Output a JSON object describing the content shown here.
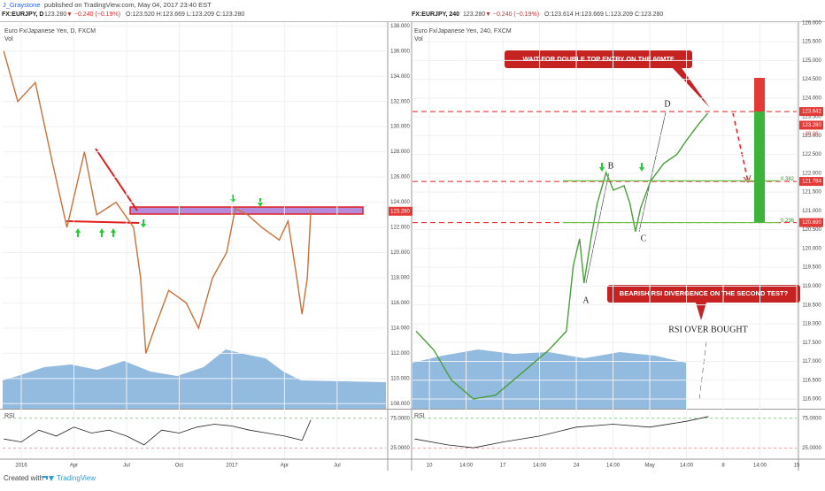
{
  "header": {
    "author": "J_Graystone",
    "published": "published on TradingView.com, May 04, 2017 23:40 EST"
  },
  "footer": {
    "created": "Created with",
    "brand": "TradingView"
  },
  "chart_data": [
    {
      "type": "line",
      "symbol": "FX:EURJPY, D",
      "quote": "123.280",
      "change": "▼ −0.240 (−0.19%)",
      "ohlc": "O:123.520 H:123.669 L:123.209 C:123.280",
      "title": "Euro Fx/Japanese Yen, D, FXCM",
      "volume_label": "Vol",
      "color": "#c8703a",
      "x": [
        -1.0,
        -0.2,
        0.8,
        1.8,
        2.6,
        3.6,
        4.3,
        5.4,
        6.4,
        6.8,
        7.1,
        7.6,
        8.4,
        9.4,
        10.1,
        10.9,
        11.7,
        12.2,
        12.9,
        13.7,
        14.7,
        15.2,
        15.7,
        16.0,
        16.3,
        16.5
      ],
      "values": [
        136,
        132,
        133.5,
        127,
        122,
        128,
        123,
        124,
        122,
        118,
        112,
        114,
        117,
        116,
        114,
        118,
        120,
        123.5,
        123,
        122,
        121,
        122.5,
        118,
        115.1,
        118,
        123.3
      ],
      "xlim": [
        -1.06,
        20.78
      ],
      "ylim": [
        107.6,
        138.3
      ],
      "xticks": [
        {
          "value": 0,
          "label": "2016"
        },
        {
          "value": 3,
          "label": "Apr"
        },
        {
          "value": 6,
          "label": "Jul"
        },
        {
          "value": 9,
          "label": "Oct"
        },
        {
          "value": 12,
          "label": "2017"
        },
        {
          "value": 15,
          "label": "Apr"
        },
        {
          "value": 18,
          "label": "Jul"
        }
      ],
      "yticks": [
        {
          "value": 108,
          "label": "108.000"
        },
        {
          "value": 110,
          "label": "110.000"
        },
        {
          "value": 112,
          "label": "112.000"
        },
        {
          "value": 114,
          "label": "114.000"
        },
        {
          "value": 116,
          "label": "116.000"
        },
        {
          "value": 118,
          "label": "118.000"
        },
        {
          "value": 120,
          "label": "120.000"
        },
        {
          "value": 122,
          "label": "122.000"
        },
        {
          "value": 124,
          "label": "124.000"
        },
        {
          "value": 126,
          "label": "126.000"
        },
        {
          "value": 128,
          "label": "128.000"
        },
        {
          "value": 130,
          "label": "130.000"
        },
        {
          "value": 132,
          "label": "132.000"
        },
        {
          "value": 134,
          "label": "134.000"
        },
        {
          "value": 136,
          "label": "136.000"
        },
        {
          "value": 138,
          "label": "138.000"
        }
      ],
      "last_price": {
        "value": 123.28,
        "label": "123.280"
      }
    },
    {
      "type": "line",
      "title": "RSI",
      "color": "#222222",
      "x": [
        -1,
        0,
        1,
        2,
        3,
        4,
        5,
        6,
        7,
        8,
        9,
        10,
        11,
        12,
        13,
        14,
        15,
        16,
        16.5
      ],
      "values": [
        40,
        35,
        55,
        45,
        60,
        50,
        55,
        45,
        30,
        55,
        50,
        60,
        65,
        62,
        55,
        50,
        45,
        38,
        72
      ],
      "xlim": [
        -1.06,
        20.78
      ],
      "ylim": [
        7.4,
        89.7
      ],
      "yticks": [
        {
          "value": 75,
          "label": "75.0000"
        },
        {
          "value": 25,
          "label": "25.0000"
        }
      ]
    },
    {
      "type": "line",
      "symbol": "FX:EURJPY, 240",
      "quote": "123.280",
      "change": "▼ −0.240 (−0.19%)",
      "ohlc": "O:123.614 H:123.669 L:123.209 C:123.280",
      "title": "Euro Fx/Japanese Yen, 240, FXCM",
      "volume_label": "Vol",
      "color": "#4a9e3c",
      "x": [
        -0.36,
        0.12,
        0.6,
        1.2,
        1.8,
        2.53,
        3.25,
        3.73,
        3.92,
        4.09,
        4.21,
        4.4,
        4.57,
        4.81,
        5.01,
        5.3,
        5.46,
        5.61,
        5.75,
        6.02,
        6.38,
        6.74,
        6.98,
        7.34,
        7.58
      ],
      "values": [
        117.8,
        117.3,
        116.5,
        116.0,
        116.1,
        116.7,
        117.3,
        117.8,
        119.55,
        120.26,
        119.08,
        120.26,
        121.2,
        122.02,
        121.55,
        121.67,
        121.2,
        120.45,
        121.08,
        121.79,
        122.26,
        122.5,
        122.85,
        123.32,
        123.6
      ],
      "xlim": [
        -0.46,
        10
      ],
      "ylim": [
        115.74,
        126.02
      ],
      "xticks": [
        {
          "value": 0,
          "label": "10"
        },
        {
          "value": 1,
          "label": "14:00"
        },
        {
          "value": 2,
          "label": "17"
        },
        {
          "value": 3,
          "label": "14:00"
        },
        {
          "value": 4,
          "label": "24"
        },
        {
          "value": 5,
          "label": "14:00"
        },
        {
          "value": 6,
          "label": "May"
        },
        {
          "value": 7,
          "label": "14:00"
        },
        {
          "value": 8,
          "label": "8"
        },
        {
          "value": 9,
          "label": "14:00"
        },
        {
          "value": 10,
          "label": "15"
        }
      ],
      "yticks": [
        {
          "value": 116,
          "label": "116.000"
        },
        {
          "value": 116.5,
          "label": "116.500"
        },
        {
          "value": 117,
          "label": "117.000"
        },
        {
          "value": 117.5,
          "label": "117.500"
        },
        {
          "value": 118,
          "label": "118.000"
        },
        {
          "value": 118.5,
          "label": "118.500"
        },
        {
          "value": 119,
          "label": "119.000"
        },
        {
          "value": 119.5,
          "label": "119.500"
        },
        {
          "value": 120,
          "label": "120.000"
        },
        {
          "value": 120.5,
          "label": "120.500"
        },
        {
          "value": 121,
          "label": "121.000"
        },
        {
          "value": 121.5,
          "label": "121.500"
        },
        {
          "value": 122,
          "label": "122.000"
        },
        {
          "value": 122.5,
          "label": "122.500"
        },
        {
          "value": 123,
          "label": "123.000"
        },
        {
          "value": 123.5,
          "label": "123.500"
        },
        {
          "value": 124,
          "label": "124.000"
        },
        {
          "value": 124.5,
          "label": "124.500"
        },
        {
          "value": 125,
          "label": "125.000"
        },
        {
          "value": 125.5,
          "label": "125.500"
        },
        {
          "value": 126,
          "label": "126.000"
        }
      ],
      "last_price": {
        "value": 123.28,
        "label": "123.280"
      },
      "last_time": "20:20",
      "levels": [
        {
          "value": 123.642,
          "label": "123.642"
        },
        {
          "value": 121.784,
          "label": "121.784"
        },
        {
          "value": 120.69,
          "label": "120.690"
        }
      ],
      "fib_levels": [
        {
          "value": 121.8,
          "label": "0.382"
        },
        {
          "value": 120.69,
          "label": "0.236"
        }
      ],
      "points": [
        "A",
        "B",
        "C",
        "D"
      ],
      "notes": [
        "WAIT FOR DOUBLE TOP ENTRY ON THE 60MTF",
        "BEARISH RSI DIVERGENCE ON THE SECOND TEST?",
        "RSI OVER BOUGHT"
      ]
    },
    {
      "type": "line",
      "title": "RSI",
      "color": "#222222",
      "x": [
        -0.4,
        0.5,
        1.2,
        2,
        3,
        4,
        5,
        6,
        7,
        7.6
      ],
      "values": [
        40,
        30,
        25,
        35,
        45,
        60,
        65,
        60,
        70,
        78
      ],
      "xlim": [
        -0.46,
        10
      ],
      "ylim": [
        7.4,
        89.7
      ],
      "yticks": [
        {
          "value": 75,
          "label": "75.0000"
        },
        {
          "value": 25,
          "label": "25.0000"
        }
      ]
    }
  ]
}
